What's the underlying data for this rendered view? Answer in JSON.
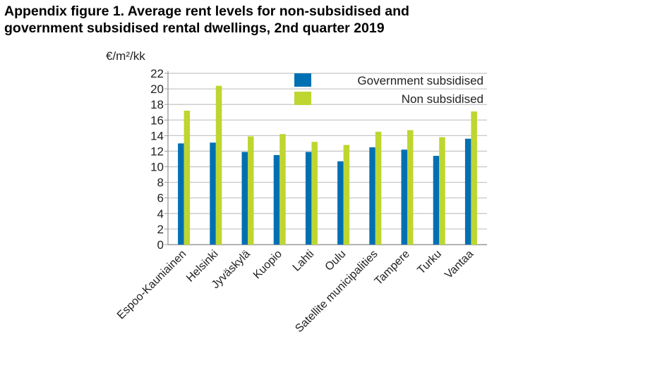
{
  "title_line1": "Appendix figure 1. Average rent levels for non-subsidised and",
  "title_line2": "government subsidised rental dwellings, 2nd quarter 2019",
  "chart_data": {
    "type": "bar",
    "title": "Appendix figure 1. Average rent levels for non-subsidised and government subsidised rental dwellings, 2nd quarter 2019",
    "ylabel": "€/m²/kk",
    "xlabel": "",
    "ylim": [
      0,
      22
    ],
    "yticks": [
      0,
      2,
      4,
      6,
      8,
      10,
      12,
      14,
      16,
      18,
      20,
      22
    ],
    "grid": true,
    "legend_position": "top-right",
    "categories": [
      "Espoo-Kauniainen",
      "Helsinki",
      "Jyväskylä",
      "Kuopio",
      "Lahti",
      "Oulu",
      "Satellite municipalities",
      "Tampere",
      "Turku",
      "Vantaa"
    ],
    "series": [
      {
        "name": "Government subsidised",
        "color": "#0070b3",
        "values": [
          13.0,
          13.1,
          11.9,
          11.5,
          11.9,
          10.7,
          12.5,
          12.2,
          11.4,
          13.6
        ]
      },
      {
        "name": "Non subsidised",
        "color": "#bed62f",
        "values": [
          17.2,
          20.4,
          13.9,
          14.2,
          13.2,
          12.8,
          14.5,
          14.7,
          13.8,
          17.1
        ]
      }
    ]
  }
}
